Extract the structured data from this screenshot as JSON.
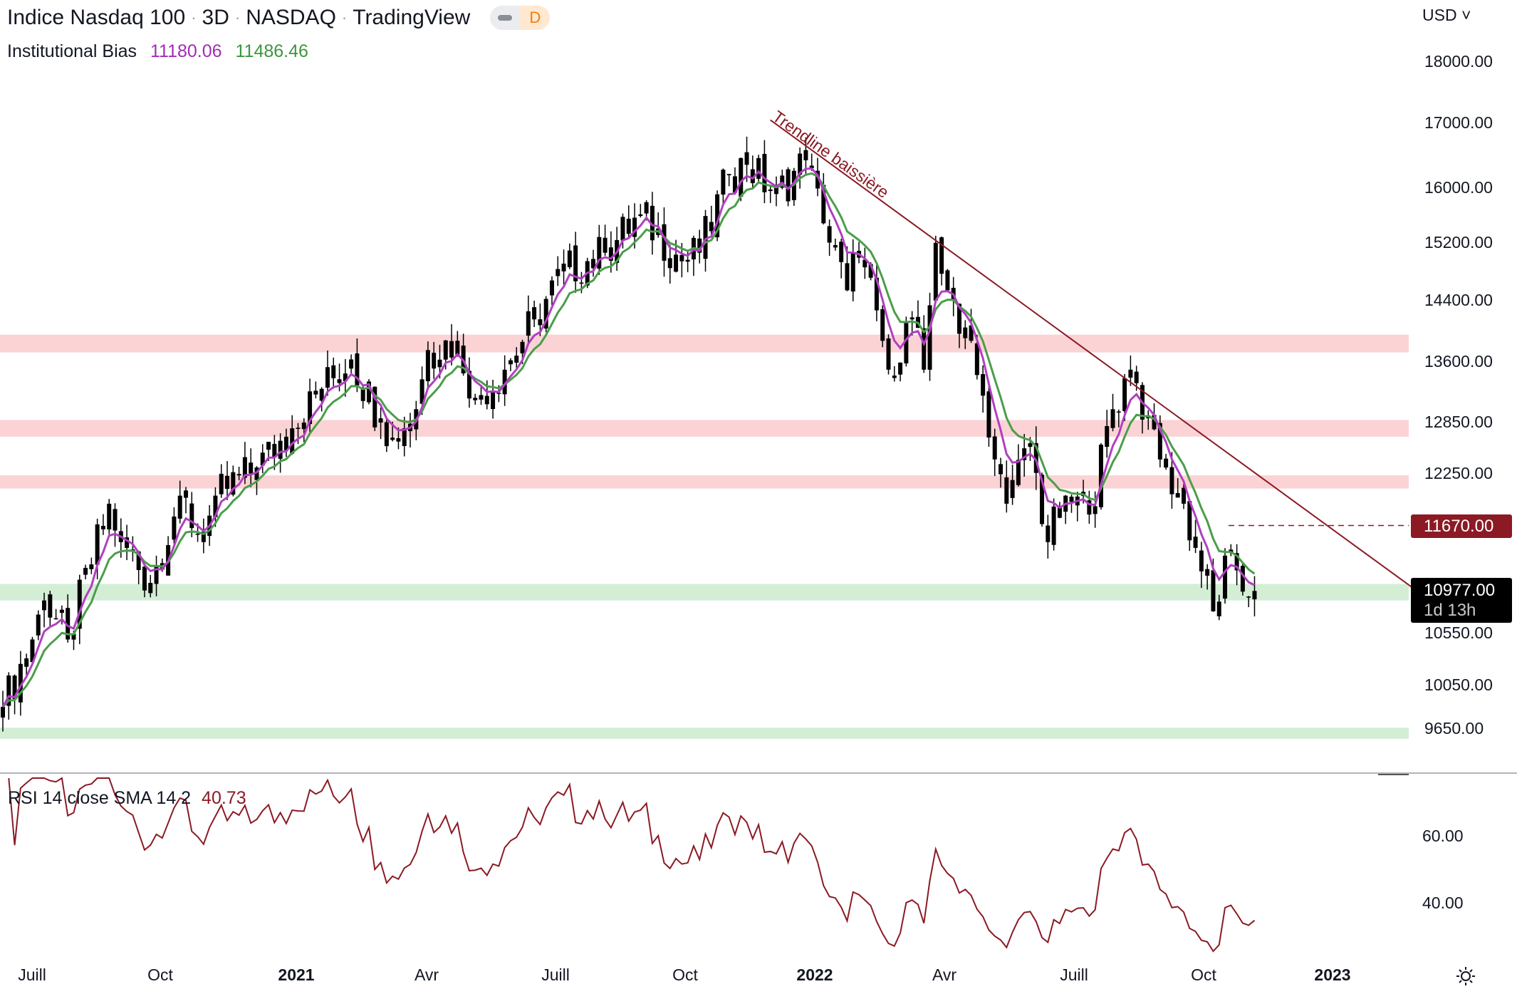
{
  "header": {
    "symbol": "Indice Nasdaq 100",
    "interval": "3D",
    "exchange": "NASDAQ",
    "source": "TradingView",
    "badge": "D",
    "separator": "·"
  },
  "indicator": {
    "name": "Institutional Bias",
    "value_fast": "11180.06",
    "value_slow": "11486.46"
  },
  "rsi": {
    "label": "RSI 14 close SMA 14 2",
    "value": "40.73",
    "axis": [
      "60.00",
      "40.00"
    ]
  },
  "currency": "USD",
  "price_axis": [
    "18000.00",
    "17000.00",
    "16000.00",
    "15200.00",
    "14400.00",
    "13600.00",
    "12850.00",
    "12250.00",
    "10550.00",
    "10050.00",
    "9650.00"
  ],
  "tags": {
    "level": "11670.00",
    "last": "10977.00",
    "countdown": "1d 13h"
  },
  "annotation": "Trendline baissière",
  "time_axis": [
    {
      "label": "Juill",
      "bold": false
    },
    {
      "label": "Oct",
      "bold": false
    },
    {
      "label": "2021",
      "bold": true
    },
    {
      "label": "Avr",
      "bold": false
    },
    {
      "label": "Juill",
      "bold": false
    },
    {
      "label": "Oct",
      "bold": false
    },
    {
      "label": "2022",
      "bold": true
    },
    {
      "label": "Avr",
      "bold": false
    },
    {
      "label": "Juill",
      "bold": false
    },
    {
      "label": "Oct",
      "bold": false
    },
    {
      "label": "2023",
      "bold": true
    }
  ],
  "colors": {
    "ema_fast": "#b040c0",
    "ema_slow": "#4a9e4a",
    "trend": "#8b1a24",
    "resistance": "#fbd3d5",
    "support": "#d4eed6",
    "rsi": "#8b1a24"
  },
  "chart_data": {
    "type": "candlestick",
    "title": "Indice Nasdaq 100 · 3D",
    "yscale": "log",
    "ylim": [
      9300,
      18500
    ],
    "resistance_zones": [
      [
        13720,
        13950
      ],
      [
        12680,
        12880
      ],
      [
        12080,
        12230
      ]
    ],
    "support_zones": [
      [
        10880,
        11050
      ],
      [
        9560,
        9660
      ]
    ],
    "level_line": 11670,
    "anchors": [
      {
        "bar": 0,
        "close": 9850
      },
      {
        "bar": 5,
        "close": 10490
      },
      {
        "bar": 7,
        "close": 10880
      },
      {
        "bar": 11,
        "close": 10490
      },
      {
        "bar": 18,
        "close": 11910
      },
      {
        "bar": 20,
        "close": 11490
      },
      {
        "bar": 25,
        "close": 11060
      },
      {
        "bar": 30,
        "close": 12000
      },
      {
        "bar": 34,
        "close": 11490
      },
      {
        "bar": 36,
        "close": 12000
      },
      {
        "bar": 43,
        "close": 12320
      },
      {
        "bar": 49,
        "close": 12780
      },
      {
        "bar": 54,
        "close": 13260
      },
      {
        "bar": 59,
        "close": 13630
      },
      {
        "bar": 64,
        "close": 12900
      },
      {
        "bar": 66,
        "close": 12670
      },
      {
        "bar": 70,
        "close": 13010
      },
      {
        "bar": 72,
        "close": 13750
      },
      {
        "bar": 77,
        "close": 13870
      },
      {
        "bar": 80,
        "close": 13150
      },
      {
        "bar": 85,
        "close": 13500
      },
      {
        "bar": 90,
        "close": 14150
      },
      {
        "bar": 95,
        "close": 14800
      },
      {
        "bar": 102,
        "close": 15060
      },
      {
        "bar": 108,
        "close": 15610
      },
      {
        "bar": 115,
        "close": 14940
      },
      {
        "bar": 118,
        "close": 15060
      },
      {
        "bar": 123,
        "close": 16210
      },
      {
        "bar": 126,
        "close": 16350
      },
      {
        "bar": 131,
        "close": 15910
      },
      {
        "bar": 136,
        "close": 16420
      },
      {
        "bar": 139,
        "close": 15480
      },
      {
        "bar": 143,
        "close": 14540
      },
      {
        "bar": 144,
        "close": 15060
      },
      {
        "bar": 148,
        "close": 14270
      },
      {
        "bar": 150,
        "close": 13500
      },
      {
        "bar": 154,
        "close": 14150
      },
      {
        "bar": 156,
        "close": 13500
      },
      {
        "bar": 158,
        "close": 15200
      },
      {
        "bar": 160,
        "close": 14540
      },
      {
        "bar": 164,
        "close": 13870
      },
      {
        "bar": 167,
        "close": 12670
      },
      {
        "bar": 170,
        "close": 11910
      },
      {
        "bar": 174,
        "close": 12560
      },
      {
        "bar": 177,
        "close": 11490
      },
      {
        "bar": 180,
        "close": 12000
      },
      {
        "bar": 184,
        "close": 11790
      },
      {
        "bar": 188,
        "close": 13010
      },
      {
        "bar": 191,
        "close": 13500
      },
      {
        "bar": 194,
        "close": 12900
      },
      {
        "bar": 197,
        "close": 12320
      },
      {
        "bar": 200,
        "close": 11910
      },
      {
        "bar": 203,
        "close": 11180
      },
      {
        "bar": 205,
        "close": 10770
      },
      {
        "bar": 208,
        "close": 11380
      },
      {
        "bar": 211,
        "close": 10920
      },
      {
        "bar": 212,
        "close": 10977
      }
    ],
    "ema_periods": [
      5,
      9
    ],
    "rsi_period": 14,
    "trendline": [
      {
        "bar": 130,
        "price": 17050
      },
      {
        "bar": 239,
        "price": 11000
      }
    ]
  }
}
